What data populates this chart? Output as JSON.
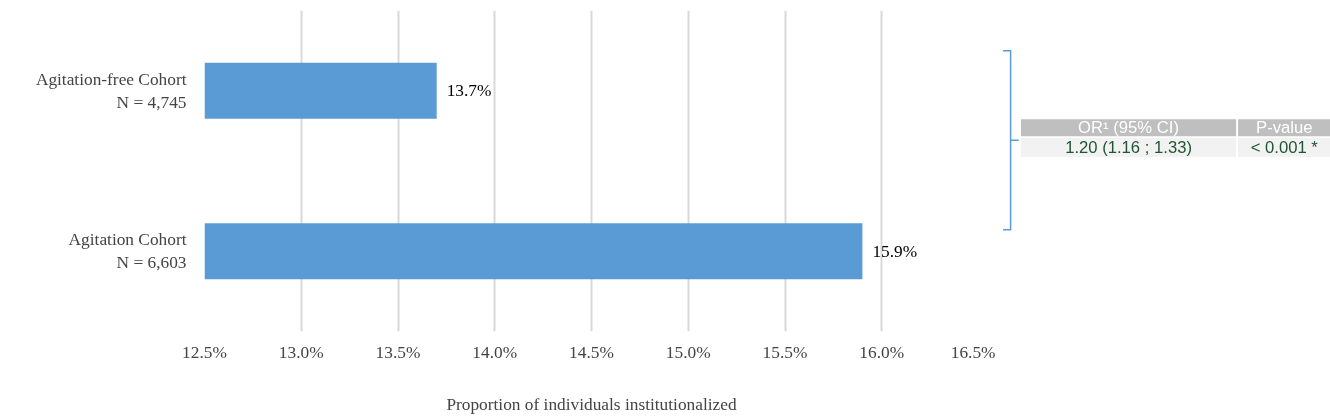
{
  "chart_data": {
    "type": "bar",
    "orientation": "horizontal",
    "categories": [
      "Agitation-free Cohort\nN = 4,745",
      "Agitation Cohort\nN = 6,603"
    ],
    "values": [
      13.7,
      15.9
    ],
    "color": "#5b9bd5",
    "value_labels": [
      "13.7%",
      "15.9%"
    ],
    "xlabel": "Proportion of individuals institutionalized",
    "xlim": [
      12.5,
      16.5
    ],
    "xticks": [
      {
        "value": 12.5,
        "label": "12.5%"
      },
      {
        "value": 13.0,
        "label": "13.0%"
      },
      {
        "value": 13.5,
        "label": "13.5%"
      },
      {
        "value": 14.0,
        "label": "14.0%"
      },
      {
        "value": 14.5,
        "label": "14.5%"
      },
      {
        "value": 15.0,
        "label": "15.0%"
      },
      {
        "value": 15.5,
        "label": "15.5%"
      },
      {
        "value": 16.0,
        "label": "16.0%"
      },
      {
        "value": 16.5,
        "label": "16.5%"
      }
    ],
    "grid": "x",
    "annotations": [
      "OR¹ (95% CI)",
      "P-value",
      "1.20 (1.16 ; 1.33)",
      "< 0.001 *"
    ]
  }
}
